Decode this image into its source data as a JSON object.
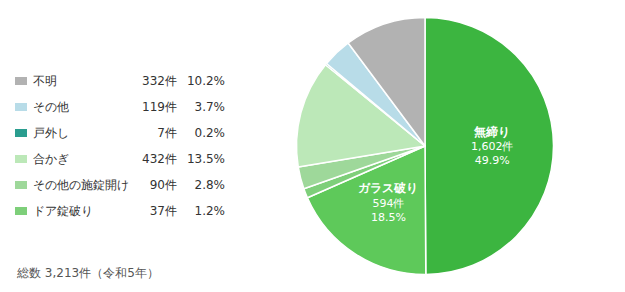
{
  "chart_data": {
    "type": "pie",
    "annotation": "総数 3,213件（令和5年）",
    "categories": [
      "無締り",
      "ガラス破り",
      "ドア錠破り",
      "その他の施錠開け",
      "合かぎ",
      "戸外し",
      "その他",
      "不明"
    ],
    "values": [
      49.9,
      18.5,
      1.2,
      2.8,
      13.5,
      0.2,
      3.7,
      10.2
    ],
    "value_labels": [
      "49.9%",
      "18.5%",
      "1.2%",
      "2.8%",
      "13.5%",
      "0.2%",
      "3.7%",
      "10.2%"
    ],
    "counts": [
      1602,
      594,
      37,
      90,
      432,
      7,
      119,
      332
    ],
    "count_labels": [
      "1,602件",
      "594件",
      "37件",
      "90件",
      "432件",
      "7件",
      "119件",
      "332件"
    ],
    "colors": [
      "#3cb540",
      "#5ec95a",
      "#7ecf7a",
      "#9ed89a",
      "#bce8b8",
      "#2a9d8f",
      "#b8dce8",
      "#b2b2b2"
    ],
    "legend": "left",
    "data_labels": true
  }
}
